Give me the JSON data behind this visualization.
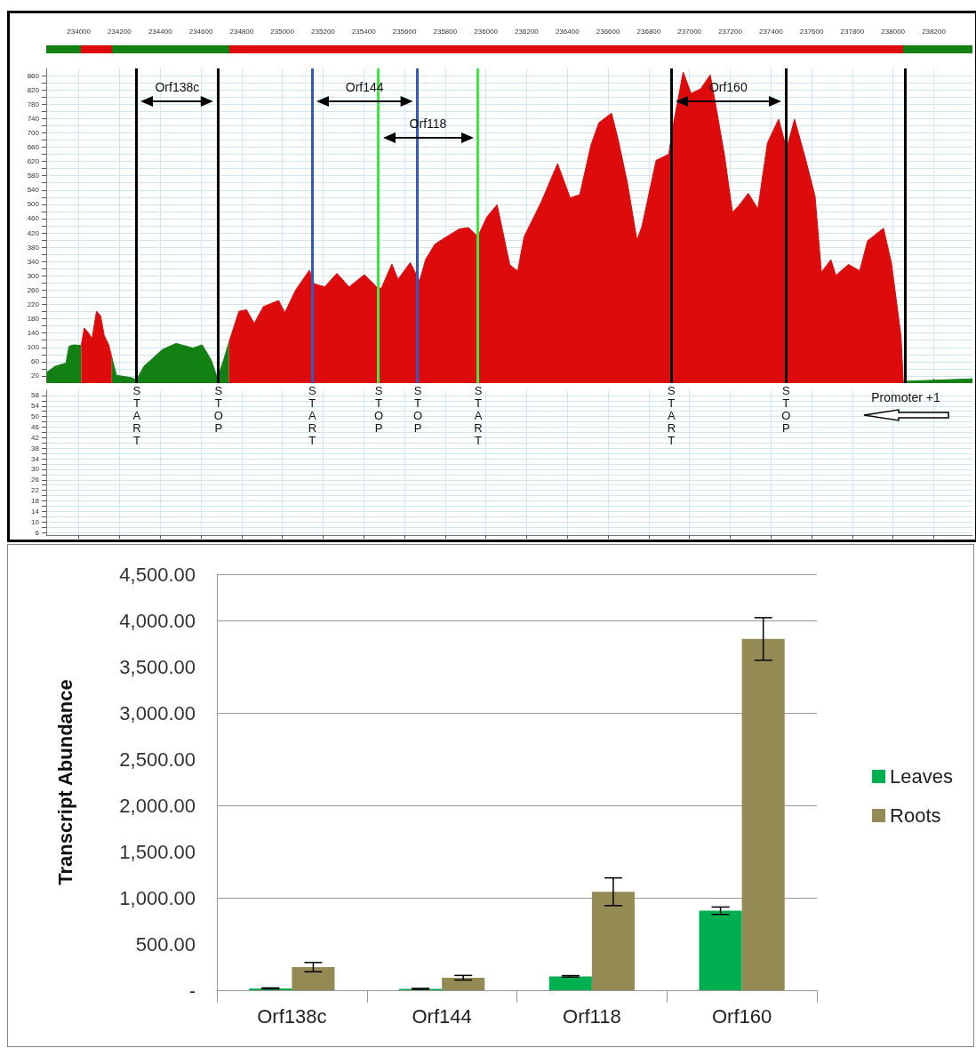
{
  "chart_data": [
    {
      "type": "area",
      "xlim": [
        233840,
        238390
      ],
      "xticks": [
        234000,
        234200,
        234400,
        234600,
        234800,
        235000,
        235200,
        235400,
        235600,
        235800,
        236000,
        236200,
        236400,
        236600,
        236800,
        237000,
        237200,
        237400,
        237600,
        237800,
        238000,
        238200
      ],
      "ylim": [
        0,
        880
      ],
      "yticks": [
        20,
        {
          "value": 40,
          "label": null
        },
        60,
        {
          "value": 80,
          "label": null
        },
        100,
        {
          "value": 120,
          "label": null
        },
        140,
        {
          "value": 160,
          "label": null
        },
        180,
        {
          "value": 200,
          "label": null
        },
        220,
        {
          "value": 240,
          "label": null
        },
        260,
        {
          "value": 280,
          "label": null
        },
        300,
        {
          "value": 320,
          "label": null
        },
        340,
        {
          "value": 360,
          "label": null
        },
        380,
        {
          "value": 400,
          "label": null
        },
        420,
        {
          "value": 440,
          "label": null
        },
        460,
        {
          "value": 480,
          "label": null
        },
        500,
        {
          "value": 520,
          "label": null
        },
        540,
        {
          "value": 560,
          "label": null
        },
        580,
        {
          "value": 600,
          "label": null
        },
        620,
        {
          "value": 640,
          "label": null
        },
        660,
        {
          "value": 680,
          "label": null
        },
        700,
        {
          "value": 720,
          "label": null
        },
        740,
        {
          "value": 760,
          "label": null
        },
        780,
        {
          "value": 800,
          "label": null
        },
        820,
        {
          "value": 840,
          "label": null
        },
        860
      ],
      "grid": true,
      "series": [
        {
          "color": "#138013",
          "x": [
            233842,
            233884,
            233937,
            233952,
            233974,
            234012,
            234087,
            234162,
            234185,
            234260,
            234283,
            234320,
            234411,
            234478,
            234561,
            234606,
            234651,
            234681,
            234711,
            234738,
            236000,
            238050,
            238200,
            238390
          ],
          "values": [
            30,
            47,
            56,
            103,
            107,
            105,
            null,
            73,
            22,
            15,
            9,
            47,
            94,
            111,
            98,
            107,
            64,
            13,
            64,
            115,
            null,
            5,
            8,
            12
          ]
        },
        {
          "color": "#dd0b0b",
          "x": [
            234012,
            234027,
            234047,
            234065,
            234087,
            234107,
            234125,
            234147,
            234162,
            234450,
            234738,
            234787,
            234824,
            234862,
            234907,
            234982,
            235012,
            235065,
            235133,
            235156,
            235208,
            235268,
            235328,
            235403,
            235463,
            235486,
            235538,
            235568,
            235628,
            235674,
            235704,
            235749,
            235794,
            235869,
            235914,
            235960,
            236005,
            236055,
            236117,
            236156,
            236188,
            236273,
            236352,
            236414,
            236461,
            236516,
            236555,
            236617,
            236648,
            236695,
            236742,
            236766,
            236836,
            236898,
            236922,
            236969,
            237008,
            237055,
            237102,
            237133,
            237172,
            237211,
            237242,
            237289,
            237336,
            237383,
            237438,
            237477,
            237516,
            237570,
            237617,
            237648,
            237695,
            237719,
            237781,
            237836,
            237875,
            237953,
            237992,
            238039,
            238050
          ],
          "values": [
            105,
            154,
            141,
            124,
            201,
            188,
            133,
            107,
            73,
            null,
            115,
            201,
            205,
            167,
            214,
            231,
            197,
            260,
            316,
            278,
            269,
            307,
            269,
            303,
            269,
            265,
            333,
            290,
            337,
            286,
            346,
            388,
            405,
            431,
            435,
            410,
            465,
            499,
            331,
            313,
            410,
            508,
            614,
            518,
            527,
            666,
            728,
            755,
            685,
            560,
            400,
            437,
            623,
            640,
            728,
            870,
            810,
            823,
            862,
            764,
            637,
            478,
            496,
            531,
            487,
            672,
            738,
            655,
            738,
            627,
            522,
            310,
            345,
            301,
            332,
            314,
            398,
            433,
            336,
            132,
            5
          ]
        }
      ],
      "ref_lines": [
        {
          "axis": "x",
          "value": 234283,
          "label": "START",
          "color": "#000000"
        },
        {
          "axis": "x",
          "value": 234684,
          "label": "STOP",
          "color": "#000000"
        },
        {
          "axis": "x",
          "value": 235145,
          "label": "START",
          "color": "#3358c4"
        },
        {
          "axis": "x",
          "value": 235471,
          "label": "STOP",
          "color": "#3fe83f"
        },
        {
          "axis": "x",
          "value": 235663,
          "label": "STOP",
          "color": "#3358c4"
        },
        {
          "axis": "x",
          "value": 235960,
          "label": "START",
          "color": "#3fe83f"
        },
        {
          "axis": "x",
          "value": 236909,
          "label": "START",
          "color": "#000000"
        },
        {
          "axis": "x",
          "value": 237472,
          "label": "STOP",
          "color": "#000000"
        },
        {
          "axis": "x",
          "value": 238060,
          "label": null,
          "color": "#000000"
        }
      ],
      "annotations": [
        "Orf138c",
        "Orf144",
        "Orf118",
        "Orf160"
      ]
    },
    {
      "type": "area",
      "xlim": [
        233840,
        238390
      ],
      "xticks": [
        234000,
        234200,
        234400,
        234600,
        234800,
        235000,
        235200,
        235400,
        235600,
        235800,
        236000,
        236200,
        236400,
        236600,
        236800,
        237000,
        237200,
        237400,
        237600,
        237800,
        238000,
        238200
      ],
      "ylim": [
        5,
        60
      ],
      "yticks": [
        6,
        {
          "value": 8,
          "label": null
        },
        10,
        {
          "value": 12,
          "label": null
        },
        14,
        {
          "value": 16,
          "label": null
        },
        18,
        {
          "value": 20,
          "label": null
        },
        22,
        {
          "value": 24,
          "label": null
        },
        26,
        {
          "value": 28,
          "label": null
        },
        30,
        {
          "value": 32,
          "label": null
        },
        34,
        {
          "value": 36,
          "label": null
        },
        38,
        {
          "value": 40,
          "label": null
        },
        42,
        {
          "value": 44,
          "label": null
        },
        46,
        {
          "value": 48,
          "label": null
        },
        50,
        {
          "value": 52,
          "label": null
        },
        54,
        {
          "value": 56,
          "label": null
        },
        58
      ],
      "tick_labels": "y",
      "grid": true,
      "annotations": [
        "Promoter +1"
      ]
    },
    {
      "type": "bar",
      "categories": [
        "Orf138c",
        "Orf144",
        "Orf118",
        "Orf160"
      ],
      "ylabel": "Transcript Abundance",
      "ylim": [
        0,
        4500
      ],
      "yticks": [
        {
          "value": 0,
          "label": "-"
        },
        {
          "value": 500,
          "label": "500.00"
        },
        {
          "value": 1000,
          "label": "1,000.00"
        },
        {
          "value": 1500,
          "label": "1,500.00"
        },
        {
          "value": 2000,
          "label": "2,000.00"
        },
        {
          "value": 2500,
          "label": "2,500.00"
        },
        {
          "value": 3000,
          "label": "3,000.00"
        },
        {
          "value": 3500,
          "label": "3,500.00"
        },
        {
          "value": 4000,
          "label": "4,000.00"
        },
        {
          "value": 4500,
          "label": "4,500.00"
        }
      ],
      "grid": "y",
      "legend": "right",
      "series": [
        {
          "name": "Leaves",
          "color": "#00b050",
          "values": [
            20,
            15,
            150,
            860
          ],
          "errors": [
            5,
            5,
            8,
            40
          ]
        },
        {
          "name": "Roots",
          "color": "#948a54",
          "values": [
            250,
            135,
            1065,
            3800
          ],
          "errors": [
            50,
            25,
            150,
            230
          ]
        }
      ]
    }
  ]
}
